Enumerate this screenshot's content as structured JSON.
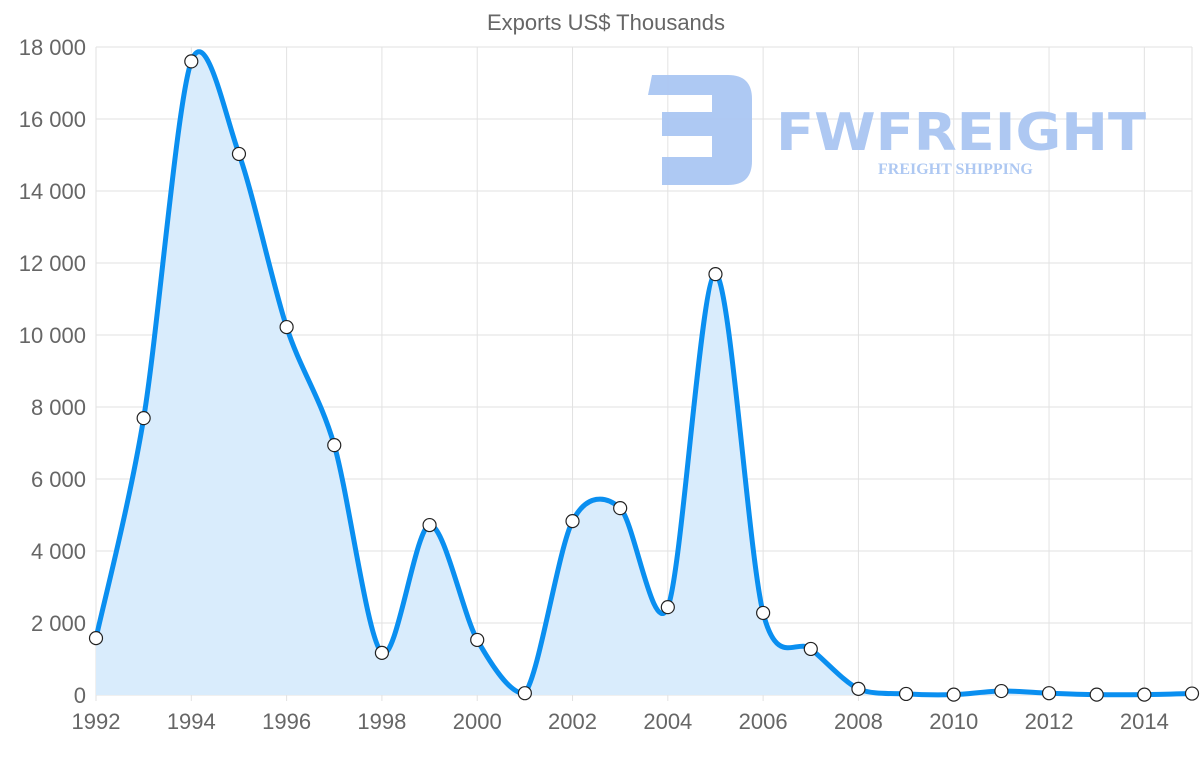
{
  "chart_data": {
    "type": "area",
    "title": "Exports US$ Thousands",
    "xlabel": "",
    "ylabel": "",
    "x": [
      1992,
      1993,
      1994,
      1995,
      1996,
      1997,
      1998,
      1999,
      2000,
      2001,
      2002,
      2003,
      2004,
      2005,
      2006,
      2007,
      2008,
      2009,
      2010,
      2011,
      2012,
      2013,
      2014,
      2015
    ],
    "series": [
      {
        "name": "Exports US$ Thousands",
        "values": [
          1580,
          7690,
          17600,
          15030,
          10220,
          6940,
          1170,
          4720,
          1530,
          50,
          4830,
          5190,
          2440,
          11690,
          2280,
          1280,
          170,
          30,
          10,
          110,
          50,
          10,
          10,
          40
        ]
      }
    ],
    "xlim": [
      1992,
      2015
    ],
    "ylim": [
      0,
      18000
    ],
    "x_ticks": [
      "1992",
      "1994",
      "1996",
      "1998",
      "2000",
      "2002",
      "2004",
      "2006",
      "2008",
      "2010",
      "2012",
      "2014"
    ],
    "y_ticks": [
      "0",
      "2 000",
      "4 000",
      "6 000",
      "8 000",
      "10 000",
      "12 000",
      "14 000",
      "16 000",
      "18 000"
    ],
    "grid": true,
    "legend": "none",
    "colors": {
      "line": "#0a8ff0",
      "fill": "#d9ecfc",
      "grid": "#e2e2e2",
      "point_fill": "#ffffff"
    }
  },
  "watermark": {
    "brand": "FWFREIGHT",
    "tagline": "FREIGHT SHIPPING"
  }
}
